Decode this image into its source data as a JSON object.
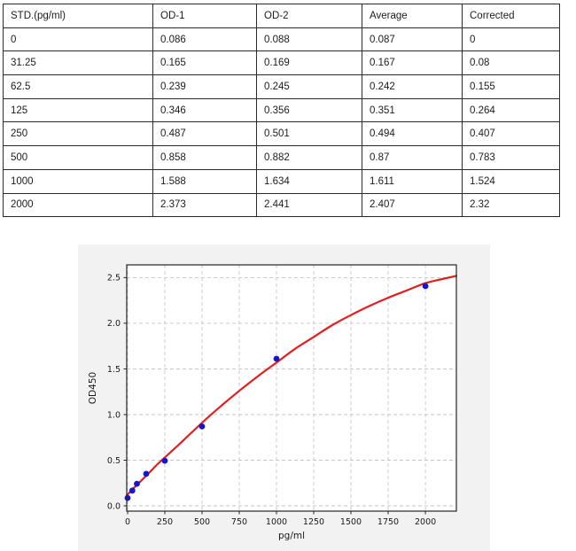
{
  "table": {
    "headers": [
      "STD.(pg/ml)",
      "OD-1",
      "OD-2",
      "Average",
      "Corrected"
    ],
    "rows": [
      [
        "0",
        "0.086",
        "0.088",
        "0.087",
        "0"
      ],
      [
        "31.25",
        "0.165",
        "0.169",
        "0.167",
        "0.08"
      ],
      [
        "62.5",
        "0.239",
        "0.245",
        "0.242",
        "0.155"
      ],
      [
        "125",
        "0.346",
        "0.356",
        "0.351",
        "0.264"
      ],
      [
        "250",
        "0.487",
        "0.501",
        "0.494",
        "0.407"
      ],
      [
        "500",
        "0.858",
        "0.882",
        "0.87",
        "0.783"
      ],
      [
        "1000",
        "1.588",
        "1.634",
        "1.611",
        "1.524"
      ],
      [
        "2000",
        "2.373",
        "2.441",
        "2.407",
        "2.32"
      ]
    ]
  },
  "chart_data": {
    "type": "scatter",
    "title": "",
    "xlabel": "pg/ml",
    "ylabel": "OD450",
    "xlim": [
      -6,
      2208
    ],
    "ylim": [
      -0.058,
      2.64
    ],
    "xticks": [
      0,
      250,
      500,
      750,
      1000,
      1250,
      1500,
      1750,
      2000
    ],
    "yticks": [
      "0.0",
      "0.5",
      "1.0",
      "1.5",
      "2.0",
      "2.5"
    ],
    "grid": true,
    "legend_position": "none",
    "figure_bg": "#f2f2f2",
    "plot_bg": "#ffffff",
    "grid_color": "#c6c6c6",
    "spine_color": "#262626",
    "series": [
      {
        "name": "fit-curve",
        "type": "line",
        "color": "#e02020",
        "points": [
          [
            -6,
            0.115
          ],
          [
            60,
            0.225
          ],
          [
            125,
            0.33
          ],
          [
            200,
            0.455
          ],
          [
            250,
            0.53
          ],
          [
            350,
            0.68
          ],
          [
            500,
            0.91
          ],
          [
            625,
            1.09
          ],
          [
            750,
            1.26
          ],
          [
            875,
            1.42
          ],
          [
            1000,
            1.57
          ],
          [
            1125,
            1.72
          ],
          [
            1250,
            1.85
          ],
          [
            1375,
            1.98
          ],
          [
            1500,
            2.09
          ],
          [
            1625,
            2.19
          ],
          [
            1750,
            2.28
          ],
          [
            1875,
            2.36
          ],
          [
            2000,
            2.44
          ],
          [
            2100,
            2.48
          ],
          [
            2208,
            2.52
          ]
        ]
      },
      {
        "name": "standard-points",
        "type": "scatter",
        "color": "#1515cf",
        "points": [
          [
            0,
            0.087
          ],
          [
            31.25,
            0.167
          ],
          [
            62.5,
            0.242
          ],
          [
            125,
            0.351
          ],
          [
            250,
            0.494
          ],
          [
            500,
            0.87
          ],
          [
            1000,
            1.611
          ],
          [
            2000,
            2.407
          ]
        ]
      }
    ]
  }
}
